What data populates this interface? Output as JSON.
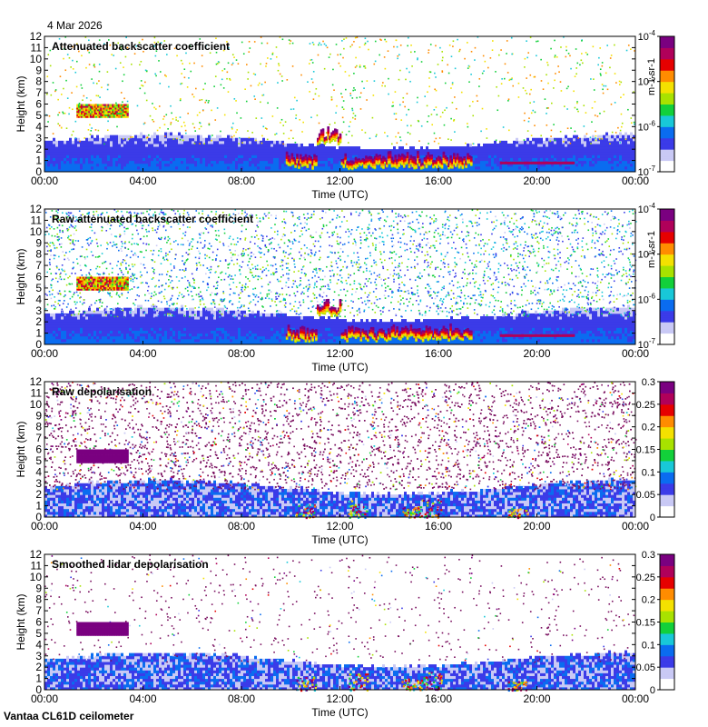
{
  "date": "4 Mar 2026",
  "footer": "Vantaa CL61D ceilometer",
  "colors": {
    "colormap": [
      "#ffffff",
      "#c9c9f5",
      "#3b3be8",
      "#0a6cf0",
      "#18c8d8",
      "#12d03a",
      "#a8e200",
      "#f4e100",
      "#ff8c00",
      "#e60000",
      "#b0005a",
      "#7a0080"
    ],
    "background_depol_noise": "#7a1060"
  },
  "chart_data": [
    {
      "type": "heatmap",
      "title": "Attenuated backscatter coefficient",
      "xlabel": "Time (UTC)",
      "ylabel": "Height (km)",
      "x_ticks": [
        "00:00",
        "04:00",
        "08:00",
        "12:00",
        "16:00",
        "20:00",
        "00:00"
      ],
      "xlim_hours": [
        0,
        24
      ],
      "y_ticks": [
        "0",
        "1",
        "2",
        "3",
        "4",
        "5",
        "6",
        "7",
        "8",
        "9",
        "10",
        "11",
        "12"
      ],
      "ylim": [
        0,
        12
      ],
      "colorbar": {
        "scale": "log",
        "ticks": [
          "10^-7",
          "10^-6",
          "10^-5",
          "10^-4"
        ],
        "label": "m-1 sr-1"
      },
      "features": [
        {
          "name": "boundary layer aerosol",
          "t_start": 0,
          "t_end": 24,
          "h_top": 3.0
        },
        {
          "name": "elevated layer",
          "t_start": 1.3,
          "t_end": 3.4,
          "h_bottom": 4.7,
          "h_top": 6.0
        },
        {
          "name": "low cloud",
          "t_start": 9.8,
          "t_end": 17.3,
          "h_bottom": 0.0,
          "h_top": 3.0
        },
        {
          "name": "fog layer",
          "t_start": 18.5,
          "t_end": 21.5,
          "h_bottom": 0.5,
          "h_top": 0.9
        }
      ]
    },
    {
      "type": "heatmap",
      "title": "Raw attenuated backscatter coefficient",
      "xlabel": "Time (UTC)",
      "ylabel": "Height (km)",
      "x_ticks": [
        "00:00",
        "04:00",
        "08:00",
        "12:00",
        "16:00",
        "20:00",
        "00:00"
      ],
      "xlim_hours": [
        0,
        24
      ],
      "y_ticks": [
        "0",
        "1",
        "2",
        "3",
        "4",
        "5",
        "6",
        "7",
        "8",
        "9",
        "10",
        "11",
        "12"
      ],
      "ylim": [
        0,
        12
      ],
      "colorbar": {
        "scale": "log",
        "ticks": [
          "10^-7",
          "10^-6",
          "10^-5",
          "10^-4"
        ],
        "label": "m-1 sr-1"
      }
    },
    {
      "type": "heatmap",
      "title": "Raw depolarisation",
      "xlabel": "Time (UTC)",
      "ylabel": "Height (km)",
      "x_ticks": [
        "00:00",
        "04:00",
        "08:00",
        "12:00",
        "16:00",
        "20:00",
        "00:00"
      ],
      "xlim_hours": [
        0,
        24
      ],
      "y_ticks": [
        "0",
        "1",
        "2",
        "3",
        "4",
        "5",
        "6",
        "7",
        "8",
        "9",
        "10",
        "11",
        "12"
      ],
      "ylim": [
        0,
        12
      ],
      "colorbar": {
        "scale": "linear",
        "ticks": [
          "0",
          "0.05",
          "0.1",
          "0.15",
          "0.2",
          "0.25",
          "0.3"
        ],
        "range": [
          0,
          0.3
        ]
      }
    },
    {
      "type": "heatmap",
      "title": "Smoothed lidar depolarisation",
      "xlabel": "Time (UTC)",
      "ylabel": "Height (km)",
      "x_ticks": [
        "00:00",
        "04:00",
        "08:00",
        "12:00",
        "16:00",
        "20:00",
        "00:00"
      ],
      "xlim_hours": [
        0,
        24
      ],
      "y_ticks": [
        "0",
        "1",
        "2",
        "3",
        "4",
        "5",
        "6",
        "7",
        "8",
        "9",
        "10",
        "11",
        "12"
      ],
      "ylim": [
        0,
        12
      ],
      "colorbar": {
        "scale": "linear",
        "ticks": [
          "0",
          "0.05",
          "0.1",
          "0.15",
          "0.2",
          "0.25",
          "0.3"
        ],
        "range": [
          0,
          0.3
        ]
      }
    }
  ]
}
